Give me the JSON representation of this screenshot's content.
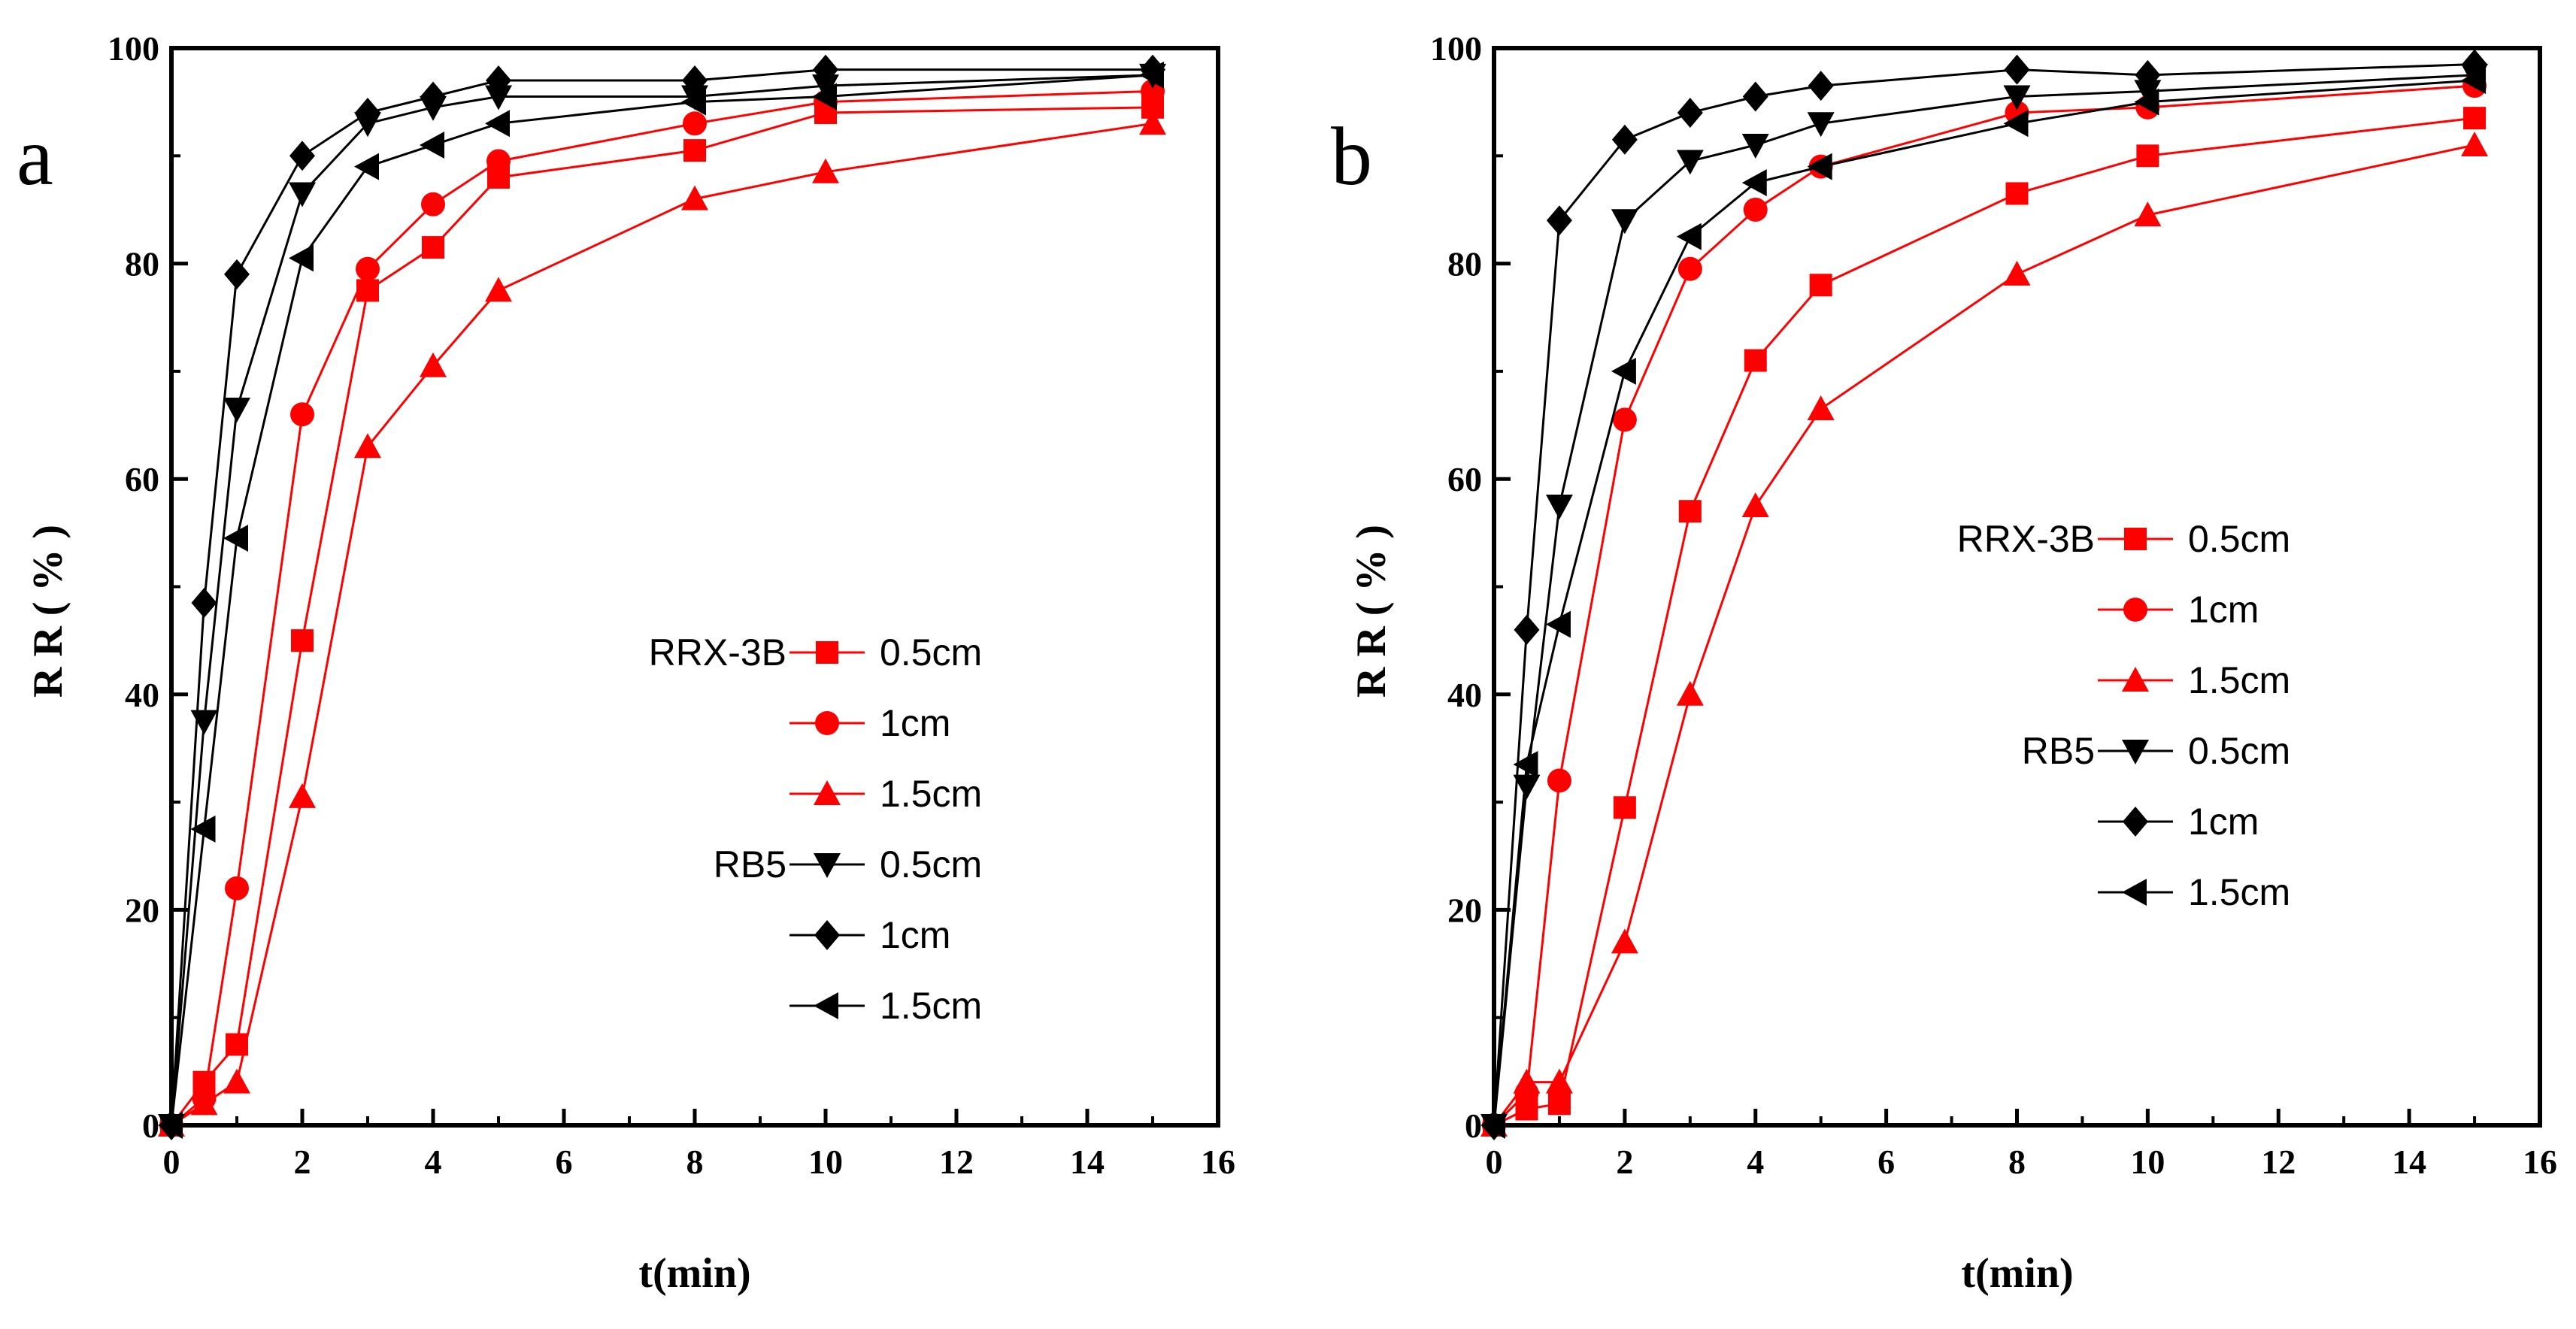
{
  "colors": {
    "rrx": "#ff0000",
    "rb5": "#000000"
  },
  "chart_data": [
    {
      "type": "line",
      "panel_label": "a",
      "xlabel": "t(min)",
      "ylabel": "R R ( % )",
      "xlim": [
        0,
        16
      ],
      "ylim": [
        0,
        100
      ],
      "x_ticks": [
        0,
        2,
        4,
        6,
        8,
        10,
        12,
        14,
        16
      ],
      "y_ticks": [
        0,
        20,
        40,
        60,
        80,
        100
      ],
      "legend_position": "center-right",
      "legend_groups": [
        "RRX-3B",
        "RB5"
      ],
      "x": [
        0,
        0.5,
        1,
        2,
        3,
        4,
        5,
        8,
        10,
        15
      ],
      "series": [
        {
          "name": "0.5cm",
          "group": "RRX-3B",
          "color": "#ff0000",
          "marker": "square",
          "values": [
            0,
            4,
            7.5,
            45,
            77.5,
            81.5,
            88,
            90.5,
            94,
            94.5
          ]
        },
        {
          "name": "1cm",
          "group": "RRX-3B",
          "color": "#ff0000",
          "marker": "circle",
          "values": [
            0,
            2.5,
            22,
            66,
            79.5,
            85.5,
            89.5,
            93,
            95,
            96
          ]
        },
        {
          "name": "1.5cm",
          "group": "RRX-3B",
          "color": "#ff0000",
          "marker": "triangle-up",
          "values": [
            0,
            2,
            4,
            30.5,
            63,
            70.5,
            77.5,
            86,
            88.5,
            93
          ]
        },
        {
          "name": "0.5cm",
          "group": "RB5",
          "color": "#000000",
          "marker": "triangle-down",
          "values": [
            0,
            37.5,
            66.5,
            86.5,
            93,
            94.5,
            95.5,
            95.5,
            96.5,
            97.5
          ]
        },
        {
          "name": "1cm",
          "group": "RB5",
          "color": "#000000",
          "marker": "diamond",
          "values": [
            0,
            48.5,
            79,
            90,
            94,
            95.5,
            97,
            97,
            98,
            98
          ]
        },
        {
          "name": "1.5cm",
          "group": "RB5",
          "color": "#000000",
          "marker": "triangle-left",
          "values": [
            0,
            27.5,
            54.5,
            80.5,
            89,
            91,
            93,
            95,
            95.5,
            97.5
          ]
        }
      ]
    },
    {
      "type": "line",
      "panel_label": "b",
      "xlabel": "t(min)",
      "ylabel": "R R ( % )",
      "xlim": [
        0,
        16
      ],
      "ylim": [
        0,
        100
      ],
      "x_ticks": [
        0,
        2,
        4,
        6,
        8,
        10,
        12,
        14,
        16
      ],
      "y_ticks": [
        0,
        20,
        40,
        60,
        80,
        100
      ],
      "legend_position": "center-right",
      "legend_groups": [
        "RRX-3B",
        "RB5"
      ],
      "x": [
        0,
        0.5,
        1,
        2,
        3,
        4,
        5,
        8,
        10,
        15
      ],
      "series": [
        {
          "name": "0.5cm",
          "group": "RRX-3B",
          "color": "#ff0000",
          "marker": "square",
          "values": [
            0,
            1.5,
            2,
            29.5,
            57,
            71,
            78,
            86.5,
            90,
            93.5
          ]
        },
        {
          "name": "1cm",
          "group": "RRX-3B",
          "color": "#ff0000",
          "marker": "circle",
          "values": [
            0,
            3,
            32,
            65.5,
            79.5,
            85,
            89,
            94,
            94.5,
            96.5
          ]
        },
        {
          "name": "1.5cm",
          "group": "RRX-3B",
          "color": "#ff0000",
          "marker": "triangle-up",
          "values": [
            0,
            4,
            4,
            17,
            40,
            57.5,
            66.5,
            79,
            84.5,
            91
          ]
        },
        {
          "name": "0.5cm",
          "group": "RB5",
          "color": "#000000",
          "marker": "triangle-down",
          "values": [
            0,
            31.5,
            57.5,
            84,
            89.5,
            91,
            93,
            95.5,
            96,
            97.5
          ]
        },
        {
          "name": "1cm",
          "group": "RB5",
          "color": "#000000",
          "marker": "diamond",
          "values": [
            0,
            46,
            84,
            91.5,
            94,
            95.5,
            96.5,
            98,
            97.5,
            98.5
          ]
        },
        {
          "name": "1.5cm",
          "group": "RB5",
          "color": "#000000",
          "marker": "triangle-left",
          "values": [
            0,
            33.5,
            46.5,
            70,
            82.5,
            87.5,
            89,
            93,
            95,
            97
          ]
        }
      ]
    }
  ]
}
